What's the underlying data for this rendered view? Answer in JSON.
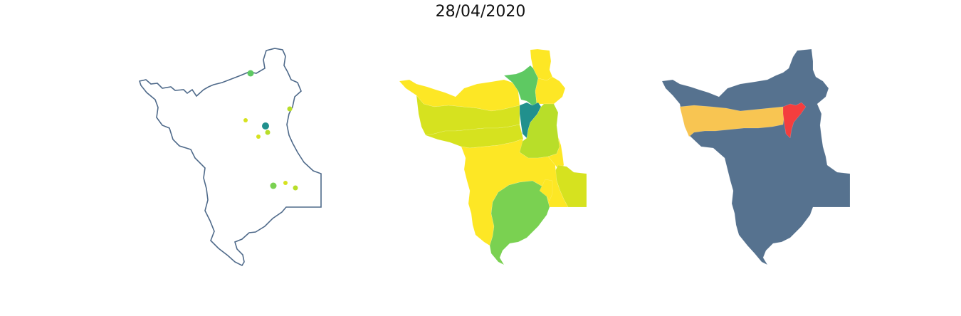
{
  "title": "28/04/2020",
  "colors": {
    "outline": "#4f6a8a",
    "yellow": "#fde725",
    "yellowgreen": "#d6e21f",
    "lime": "#b8de29",
    "green": "#7ad151",
    "midgreen": "#5ec962",
    "teal": "#21908d",
    "slate": "#56728f",
    "orange": "#f8c552",
    "red": "#f43e3e"
  },
  "panels": [
    {
      "name": "point-map",
      "icon": "points-map-icon"
    },
    {
      "name": "choropleth-map",
      "icon": "viridis-map-icon"
    },
    {
      "name": "highlight-map",
      "icon": "highlight-map-icon"
    }
  ]
}
